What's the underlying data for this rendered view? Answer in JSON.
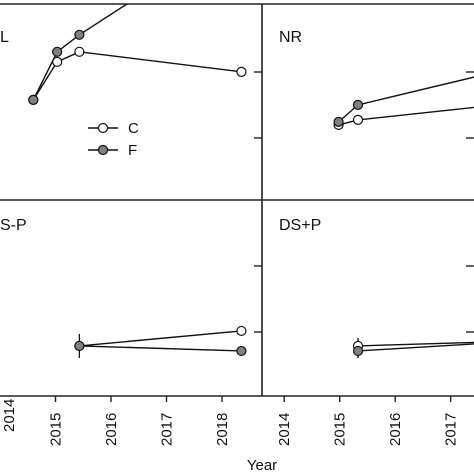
{
  "chart_data": [
    {
      "type": "line",
      "title": "L",
      "xlim": [
        2014,
        2018
      ],
      "ylim": [
        0,
        4
      ],
      "x_ticks": [],
      "series": [
        {
          "name": "C",
          "color": "#ffffff",
          "x": [
            2014.6,
            2015.03,
            2015.43,
            2018.35
          ],
          "y": [
            1.0,
            1.38,
            1.48,
            1.28
          ]
        },
        {
          "name": "F",
          "color": "#808080",
          "x": [
            2014.6,
            2015.03,
            2015.43,
            2018.35
          ],
          "y": [
            1.0,
            1.48,
            1.65,
            2.7
          ]
        }
      ]
    },
    {
      "type": "line",
      "title": "NR",
      "xlim": [
        2013.6,
        2017.6
      ],
      "ylim": [
        0,
        4
      ],
      "x_ticks": [],
      "series": [
        {
          "name": "C",
          "color": "#ffffff",
          "x": [
            2014.98,
            2015.33,
            2018.35
          ],
          "y": [
            0.75,
            0.8,
            0.98
          ]
        },
        {
          "name": "F",
          "color": "#808080",
          "x": [
            2014.98,
            2015.33,
            2018.35
          ],
          "y": [
            0.78,
            0.95,
            1.35
          ]
        }
      ]
    },
    {
      "type": "line",
      "title": "S-P",
      "xlim": [
        2014,
        2018
      ],
      "ylim": [
        0,
        4
      ],
      "x_ticks": [
        "2015",
        "2016",
        "2017",
        "2018"
      ],
      "series": [
        {
          "name": "C",
          "color": "#ffffff",
          "x": [
            2015.43,
            2018.35
          ],
          "y": [
            0.5,
            0.65
          ]
        },
        {
          "name": "F",
          "color": "#808080",
          "x": [
            2015.43,
            2018.35
          ],
          "y": [
            0.5,
            0.45
          ]
        }
      ]
    },
    {
      "type": "line",
      "title": "DS+P",
      "xlim": [
        2013.6,
        2017.6
      ],
      "ylim": [
        0,
        4
      ],
      "x_ticks": [
        "2014",
        "2015",
        "2016",
        "2017"
      ],
      "series": [
        {
          "name": "C",
          "color": "#ffffff",
          "x": [
            2015.33,
            2018.35
          ],
          "y": [
            0.5,
            0.55
          ]
        },
        {
          "name": "F",
          "color": "#808080",
          "x": [
            2015.33,
            2018.35
          ],
          "y": [
            0.45,
            0.55
          ]
        }
      ]
    }
  ],
  "legend": [
    {
      "label": "C",
      "color": "#ffffff"
    },
    {
      "label": "F",
      "color": "#808080"
    }
  ],
  "edge_tick_label": "2014",
  "xlabel": "Year"
}
